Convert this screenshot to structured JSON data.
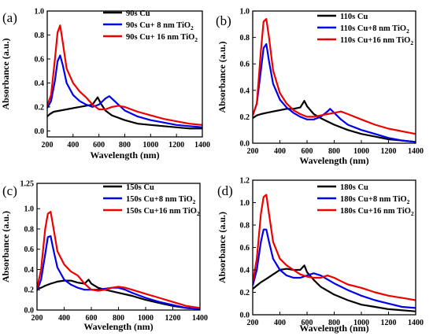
{
  "chart_data": [
    {
      "type": "line",
      "panel_label": "(a)",
      "xlabel": "Wavelength (nm)",
      "ylabel": "Absorbance (a.u.)",
      "xlim": [
        200,
        1400
      ],
      "ylim": [
        -0.05,
        1.0
      ],
      "xticks": [
        200,
        400,
        600,
        800,
        1000,
        1200,
        1400
      ],
      "yticks": [
        0.0,
        0.2,
        0.4,
        0.6,
        0.8,
        1.0
      ],
      "ytick_labels": [
        "0.0",
        "0.2",
        "0.4",
        "0.6",
        "0.8",
        "1.0"
      ],
      "legend_position": "top-right",
      "series": [
        {
          "name": "90s Cu",
          "legend_main": "90s Cu",
          "legend_sub": "",
          "color": "#000000",
          "x": [
            200,
            220,
            250,
            300,
            350,
            400,
            450,
            500,
            550,
            590,
            620,
            650,
            700,
            800,
            900,
            1000,
            1100,
            1200,
            1300,
            1400
          ],
          "y": [
            0.12,
            0.14,
            0.16,
            0.17,
            0.18,
            0.19,
            0.2,
            0.21,
            0.22,
            0.28,
            0.22,
            0.17,
            0.13,
            0.09,
            0.06,
            0.05,
            0.04,
            0.03,
            0.02,
            0.02
          ]
        },
        {
          "name": "90s Cu+ 8 nm TiO2",
          "legend_main": "90s Cu+ 8 nm TiO",
          "legend_sub": "2",
          "color": "#0000ee",
          "x": [
            200,
            230,
            260,
            280,
            300,
            320,
            350,
            400,
            450,
            500,
            550,
            600,
            650,
            680,
            720,
            800,
            900,
            1000,
            1100,
            1200,
            1300,
            1400
          ],
          "y": [
            0.19,
            0.25,
            0.42,
            0.58,
            0.63,
            0.55,
            0.4,
            0.3,
            0.25,
            0.22,
            0.2,
            0.22,
            0.27,
            0.29,
            0.25,
            0.17,
            0.12,
            0.09,
            0.07,
            0.05,
            0.04,
            0.03
          ]
        },
        {
          "name": "90s Cu+ 16 nm TiO2",
          "legend_main": "90s Cu+ 16 nm TiO",
          "legend_sub": "2",
          "color": "#ee0000",
          "x": [
            200,
            230,
            260,
            280,
            300,
            320,
            350,
            400,
            450,
            500,
            550,
            600,
            650,
            700,
            750,
            800,
            850,
            900,
            1000,
            1100,
            1200,
            1300,
            1400
          ],
          "y": [
            0.21,
            0.3,
            0.6,
            0.82,
            0.88,
            0.74,
            0.52,
            0.4,
            0.33,
            0.28,
            0.22,
            0.18,
            0.18,
            0.2,
            0.21,
            0.2,
            0.18,
            0.16,
            0.13,
            0.1,
            0.08,
            0.06,
            0.05
          ]
        }
      ]
    },
    {
      "type": "line",
      "panel_label": "(b)",
      "xlabel": "Wavelength (nm)",
      "ylabel": "Absorbance (a.u.)",
      "xlim": [
        200,
        1400
      ],
      "ylim": [
        0.0,
        1.0
      ],
      "xticks": [
        200,
        400,
        600,
        800,
        1000,
        1200,
        1400
      ],
      "yticks": [
        0.0,
        0.2,
        0.4,
        0.6,
        0.8,
        1.0
      ],
      "ytick_labels": [
        "0.0",
        "0.2",
        "0.4",
        "0.6",
        "0.8",
        "1.0"
      ],
      "legend_position": "top-right",
      "series": [
        {
          "name": "110s Cu",
          "legend_main": "110s Cu",
          "legend_sub": "",
          "color": "#000000",
          "x": [
            200,
            230,
            260,
            300,
            350,
            400,
            450,
            500,
            550,
            580,
            600,
            650,
            700,
            800,
            900,
            1000,
            1100,
            1200,
            1300,
            1400
          ],
          "y": [
            0.19,
            0.21,
            0.22,
            0.23,
            0.24,
            0.25,
            0.26,
            0.26,
            0.27,
            0.32,
            0.28,
            0.22,
            0.19,
            0.14,
            0.1,
            0.07,
            0.05,
            0.03,
            0.02,
            0.01
          ]
        },
        {
          "name": "110s Cu+8 nm TiO2",
          "legend_main": "110s Cu+8 nm TiO",
          "legend_sub": "2",
          "color": "#0000ee",
          "x": [
            200,
            230,
            260,
            280,
            300,
            320,
            350,
            400,
            450,
            500,
            550,
            600,
            650,
            700,
            750,
            770,
            800,
            850,
            900,
            1000,
            1100,
            1200,
            1300,
            1400
          ],
          "y": [
            0.21,
            0.3,
            0.55,
            0.72,
            0.75,
            0.62,
            0.45,
            0.33,
            0.27,
            0.23,
            0.2,
            0.18,
            0.18,
            0.2,
            0.24,
            0.26,
            0.23,
            0.18,
            0.14,
            0.1,
            0.07,
            0.04,
            0.02,
            0.01
          ]
        },
        {
          "name": "110s Cu+16 nm TiO2",
          "legend_main": "110s Cu+16 nm TiO",
          "legend_sub": "2",
          "color": "#ee0000",
          "x": [
            200,
            230,
            260,
            280,
            300,
            320,
            350,
            400,
            450,
            500,
            550,
            600,
            650,
            700,
            750,
            800,
            850,
            900,
            1000,
            1100,
            1200,
            1300,
            1400
          ],
          "y": [
            0.21,
            0.3,
            0.7,
            0.92,
            0.94,
            0.8,
            0.55,
            0.38,
            0.3,
            0.25,
            0.22,
            0.2,
            0.2,
            0.21,
            0.22,
            0.23,
            0.24,
            0.22,
            0.18,
            0.14,
            0.11,
            0.09,
            0.07
          ]
        }
      ]
    },
    {
      "type": "line",
      "panel_label": "(c)",
      "xlabel": "Wavelength (nm)",
      "ylabel": "Absorbance (a.u.)",
      "xlim": [
        200,
        1400
      ],
      "ylim": [
        0.0,
        1.25
      ],
      "xticks": [
        200,
        400,
        600,
        800,
        1000,
        1200,
        1400
      ],
      "yticks": [
        0.0,
        0.2,
        0.4,
        0.6,
        0.8,
        1.0,
        1.25
      ],
      "ytick_labels": [
        "0.0",
        "0.2",
        "0.4",
        "0.6",
        "0.8",
        "1.0",
        "1.25"
      ],
      "legend_position": "top-right",
      "series": [
        {
          "name": "150s Cu",
          "legend_main": "150s Cu",
          "legend_sub": "",
          "color": "#000000",
          "x": [
            200,
            230,
            260,
            300,
            350,
            400,
            450,
            500,
            550,
            580,
            600,
            650,
            700,
            800,
            900,
            1000,
            1100,
            1200,
            1300,
            1400
          ],
          "y": [
            0.21,
            0.22,
            0.24,
            0.26,
            0.28,
            0.29,
            0.29,
            0.27,
            0.26,
            0.3,
            0.26,
            0.22,
            0.2,
            0.17,
            0.14,
            0.1,
            0.07,
            0.04,
            0.02,
            0.01
          ]
        },
        {
          "name": "150s Cu+8 nm TiO2",
          "legend_main": "150s Cu+8 nm TiO",
          "legend_sub": "2",
          "color": "#0000ee",
          "x": [
            200,
            230,
            260,
            280,
            300,
            320,
            350,
            400,
            450,
            500,
            550,
            600,
            650,
            700,
            750,
            800,
            850,
            900,
            1000,
            1100,
            1200,
            1300,
            1400
          ],
          "y": [
            0.19,
            0.3,
            0.55,
            0.72,
            0.73,
            0.6,
            0.42,
            0.3,
            0.25,
            0.22,
            0.2,
            0.2,
            0.2,
            0.21,
            0.22,
            0.22,
            0.2,
            0.17,
            0.12,
            0.08,
            0.05,
            0.02,
            0.01
          ]
        },
        {
          "name": "150s Cu+16 nm TiO2",
          "legend_main": "150s Cu+16 nm TiO",
          "legend_sub": "2",
          "color": "#ee0000",
          "x": [
            200,
            230,
            260,
            280,
            300,
            320,
            350,
            400,
            450,
            500,
            550,
            600,
            650,
            700,
            750,
            800,
            850,
            900,
            1000,
            1100,
            1200,
            1300,
            1400
          ],
          "y": [
            0.21,
            0.4,
            0.8,
            0.95,
            0.97,
            0.82,
            0.58,
            0.45,
            0.38,
            0.34,
            0.26,
            0.2,
            0.19,
            0.2,
            0.22,
            0.23,
            0.22,
            0.2,
            0.16,
            0.12,
            0.08,
            0.04,
            0.02
          ]
        }
      ]
    },
    {
      "type": "line",
      "panel_label": "(d)",
      "xlabel": "Wavelength (nm)",
      "ylabel": "Absorbance (a.u.)",
      "xlim": [
        200,
        1400
      ],
      "ylim": [
        0.0,
        1.2
      ],
      "xticks": [
        200,
        400,
        600,
        800,
        1000,
        1200,
        1400
      ],
      "yticks": [
        0.0,
        0.2,
        0.4,
        0.6,
        0.8,
        1.0,
        1.2
      ],
      "ytick_labels": [
        "0.0",
        "0.2",
        "0.4",
        "0.6",
        "0.8",
        "1.0",
        "1.2"
      ],
      "legend_position": "top-right",
      "series": [
        {
          "name": "180s Cu",
          "legend_main": "180s Cu",
          "legend_sub": "",
          "color": "#000000",
          "x": [
            200,
            230,
            260,
            300,
            350,
            400,
            450,
            500,
            550,
            580,
            600,
            650,
            700,
            800,
            900,
            1000,
            1100,
            1200,
            1300,
            1400
          ],
          "y": [
            0.23,
            0.26,
            0.29,
            0.32,
            0.36,
            0.4,
            0.41,
            0.4,
            0.4,
            0.44,
            0.38,
            0.31,
            0.25,
            0.18,
            0.13,
            0.09,
            0.07,
            0.05,
            0.04,
            0.03
          ]
        },
        {
          "name": "180s Cu+8 nm TiO2",
          "legend_main": "180s Cu+8 nm TiO",
          "legend_sub": "2",
          "color": "#0000ee",
          "x": [
            200,
            230,
            260,
            280,
            300,
            320,
            350,
            400,
            450,
            500,
            550,
            600,
            650,
            700,
            800,
            900,
            1000,
            1100,
            1200,
            1300,
            1400
          ],
          "y": [
            0.26,
            0.4,
            0.65,
            0.76,
            0.76,
            0.65,
            0.5,
            0.4,
            0.35,
            0.33,
            0.33,
            0.35,
            0.37,
            0.35,
            0.28,
            0.22,
            0.17,
            0.13,
            0.1,
            0.07,
            0.06
          ]
        },
        {
          "name": "180s Cu+16 nm TiO2",
          "legend_main": "180s Cu+16 nm TiO",
          "legend_sub": "2",
          "color": "#ee0000",
          "x": [
            200,
            230,
            260,
            280,
            300,
            320,
            350,
            400,
            450,
            500,
            550,
            600,
            650,
            700,
            750,
            800,
            850,
            900,
            1000,
            1100,
            1200,
            1300,
            1400
          ],
          "y": [
            0.29,
            0.5,
            0.9,
            1.05,
            1.07,
            0.9,
            0.65,
            0.5,
            0.44,
            0.4,
            0.36,
            0.34,
            0.33,
            0.33,
            0.35,
            0.33,
            0.3,
            0.27,
            0.24,
            0.2,
            0.17,
            0.15,
            0.13
          ]
        }
      ]
    }
  ]
}
